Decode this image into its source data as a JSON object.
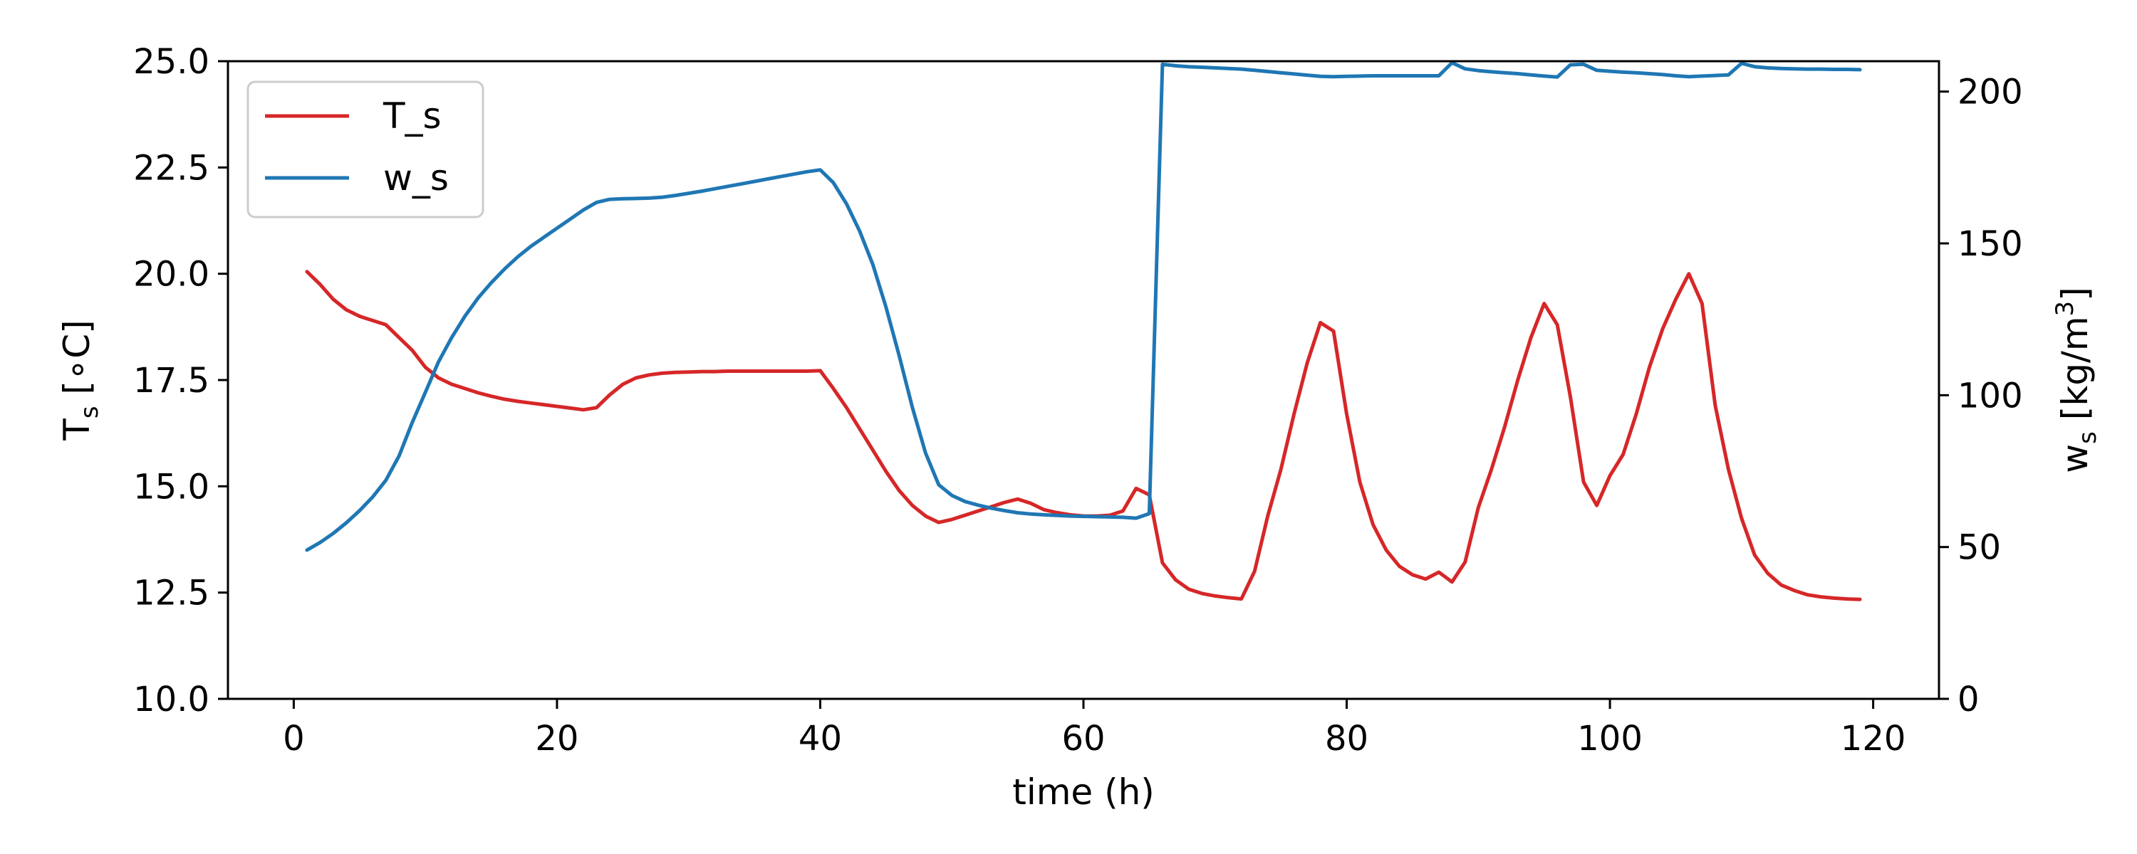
{
  "chart_data": {
    "type": "line",
    "xlabel": "time (h)",
    "ylabel_left": {
      "base": "T",
      "sub": "s",
      "unit": "[∘C]"
    },
    "ylabel_right": {
      "base": "w",
      "sub": "s",
      "unit_pre": "[kg/m",
      "unit_sup": "3",
      "unit_post": "]"
    },
    "xlim": [
      -5,
      125
    ],
    "ylim_left": [
      10.0,
      25.0
    ],
    "ylim_right": [
      0,
      210
    ],
    "xticks": [
      0,
      20,
      40,
      60,
      80,
      100,
      120
    ],
    "yticks_left": [
      "10.0",
      "12.5",
      "15.0",
      "17.5",
      "20.0",
      "22.5",
      "25.0"
    ],
    "yticks_right": [
      0,
      50,
      100,
      150,
      200
    ],
    "grid": false,
    "legend_position": "top-left",
    "series": [
      {
        "name": "T_s",
        "axis": "left",
        "color": "#d62728",
        "x": [
          1,
          2,
          3,
          4,
          5,
          6,
          7,
          8,
          9,
          10,
          11,
          12,
          13,
          14,
          15,
          16,
          17,
          18,
          19,
          20,
          21,
          22,
          23,
          24,
          25,
          26,
          27,
          28,
          29,
          30,
          31,
          32,
          33,
          34,
          35,
          36,
          37,
          38,
          39,
          40,
          41,
          42,
          43,
          44,
          45,
          46,
          47,
          48,
          49,
          50,
          51,
          52,
          53,
          54,
          55,
          56,
          57,
          58,
          59,
          60,
          61,
          62,
          63,
          64,
          65,
          66,
          67,
          68,
          69,
          70,
          71,
          72,
          73,
          74,
          75,
          76,
          77,
          78,
          79,
          80,
          81,
          82,
          83,
          84,
          85,
          86,
          87,
          88,
          89,
          90,
          91,
          92,
          93,
          94,
          95,
          96,
          97,
          98,
          99,
          100,
          101,
          102,
          103,
          104,
          105,
          106,
          107,
          108,
          109,
          110,
          111,
          112,
          113,
          114,
          115,
          116,
          117,
          118,
          119
        ],
        "values": [
          20.05,
          19.75,
          19.4,
          19.15,
          19.0,
          18.9,
          18.8,
          18.5,
          18.2,
          17.8,
          17.55,
          17.4,
          17.3,
          17.2,
          17.12,
          17.05,
          17.0,
          16.96,
          16.92,
          16.88,
          16.84,
          16.8,
          16.85,
          17.15,
          17.4,
          17.55,
          17.62,
          17.66,
          17.68,
          17.69,
          17.7,
          17.7,
          17.71,
          17.71,
          17.71,
          17.71,
          17.71,
          17.71,
          17.71,
          17.72,
          17.3,
          16.85,
          16.35,
          15.85,
          15.35,
          14.9,
          14.55,
          14.3,
          14.15,
          14.22,
          14.32,
          14.42,
          14.52,
          14.62,
          14.7,
          14.6,
          14.45,
          14.38,
          14.33,
          14.3,
          14.3,
          14.32,
          14.42,
          14.95,
          14.8,
          13.2,
          12.8,
          12.58,
          12.48,
          12.42,
          12.38,
          12.35,
          13.0,
          14.3,
          15.4,
          16.7,
          17.9,
          18.85,
          18.65,
          16.7,
          15.1,
          14.1,
          13.5,
          13.12,
          12.92,
          12.82,
          12.98,
          12.75,
          13.22,
          14.5,
          15.4,
          16.4,
          17.5,
          18.5,
          19.3,
          18.8,
          17.1,
          15.1,
          14.55,
          15.25,
          15.75,
          16.7,
          17.8,
          18.7,
          19.4,
          20.0,
          19.3,
          16.9,
          15.4,
          14.25,
          13.38,
          12.95,
          12.68,
          12.55,
          12.45,
          12.4,
          12.37,
          12.35,
          12.34
        ]
      },
      {
        "name": "w_s",
        "axis": "right",
        "color": "#1f77b4",
        "x": [
          1,
          2,
          3,
          4,
          5,
          6,
          7,
          8,
          9,
          10,
          11,
          12,
          13,
          14,
          15,
          16,
          17,
          18,
          19,
          20,
          21,
          22,
          23,
          24,
          25,
          26,
          27,
          28,
          29,
          30,
          31,
          32,
          33,
          34,
          35,
          36,
          37,
          38,
          39,
          40,
          41,
          42,
          43,
          44,
          45,
          46,
          47,
          48,
          49,
          50,
          51,
          52,
          53,
          54,
          55,
          56,
          57,
          58,
          59,
          60,
          61,
          62,
          63,
          64,
          65,
          66,
          67,
          68,
          69,
          70,
          71,
          72,
          73,
          74,
          75,
          76,
          77,
          78,
          79,
          80,
          81,
          82,
          83,
          84,
          85,
          86,
          87,
          88,
          89,
          90,
          91,
          92,
          93,
          94,
          95,
          96,
          97,
          98,
          99,
          100,
          101,
          102,
          103,
          104,
          105,
          106,
          107,
          108,
          109,
          110,
          111,
          112,
          113,
          114,
          115,
          116,
          117,
          118,
          119
        ],
        "values": [
          49,
          51.5,
          54.5,
          58,
          62,
          66.5,
          72,
          80,
          91,
          101,
          111,
          119,
          126,
          132,
          137,
          141.5,
          145.5,
          149,
          152,
          155,
          158,
          161,
          163.5,
          164.5,
          164.7,
          164.8,
          164.9,
          165.2,
          165.8,
          166.5,
          167.2,
          168,
          168.8,
          169.6,
          170.4,
          171.2,
          172,
          172.8,
          173.6,
          174.2,
          170,
          163,
          154,
          143,
          129,
          113,
          96,
          81,
          70.5,
          67,
          65,
          63.8,
          62.8,
          62,
          61.3,
          60.9,
          60.6,
          60.4,
          60.2,
          60.1,
          60,
          59.9,
          59.8,
          59.5,
          61,
          209,
          208.5,
          208.2,
          208,
          207.8,
          207.6,
          207.4,
          207,
          206.6,
          206.2,
          205.8,
          205.4,
          205,
          204.9,
          205,
          205.1,
          205.2,
          205.2,
          205.2,
          205.2,
          205.2,
          205.2,
          209.5,
          207.5,
          206.9,
          206.5,
          206.2,
          205.9,
          205.5,
          205.1,
          204.8,
          208.8,
          209,
          207,
          206.7,
          206.4,
          206.2,
          205.9,
          205.6,
          205.2,
          204.9,
          205.1,
          205.3,
          205.5,
          209.3,
          208.2,
          207.8,
          207.6,
          207.5,
          207.4,
          207.4,
          207.3,
          207.3,
          207.2
        ]
      }
    ]
  }
}
